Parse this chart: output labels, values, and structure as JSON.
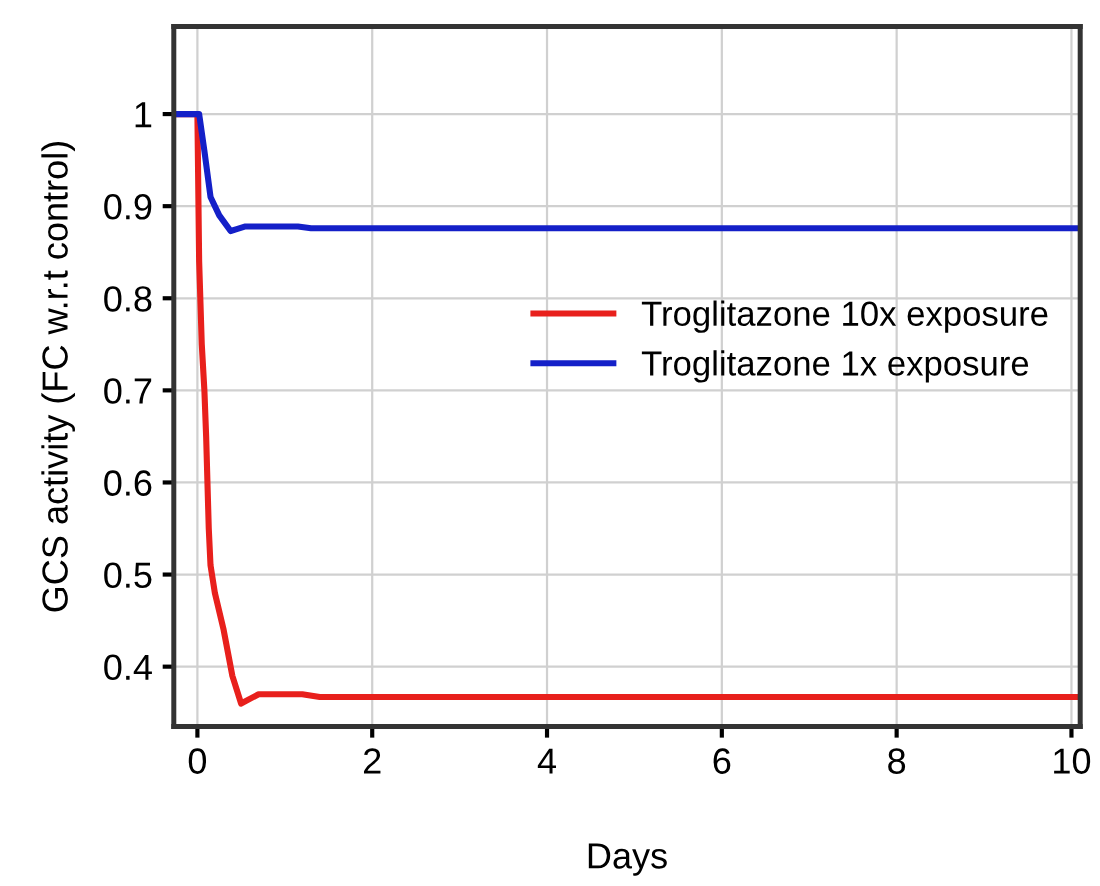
{
  "chart_data": {
    "type": "line",
    "xlabel": "Days",
    "ylabel": "GCS activity (FC w.r.t control)",
    "series": [
      {
        "name": "Troglitazone 10x exposure",
        "color": "#e8201c",
        "x": [
          -0.27,
          0,
          0.02,
          0.05,
          0.08,
          0.1,
          0.13,
          0.15,
          0.2,
          0.3,
          0.4,
          0.5,
          0.6,
          0.7,
          1.2,
          1.4,
          10.1
        ],
        "values": [
          1,
          1,
          0.84,
          0.75,
          0.7,
          0.65,
          0.55,
          0.51,
          0.48,
          0.44,
          0.39,
          0.36,
          0.365,
          0.37,
          0.37,
          0.367,
          0.367
        ]
      },
      {
        "name": "Troglitazone 1x exposure",
        "color": "#1420c8",
        "x": [
          -0.27,
          0.02,
          0.08,
          0.15,
          0.25,
          0.38,
          0.45,
          0.55,
          1.15,
          1.3,
          10.1
        ],
        "values": [
          1,
          1,
          0.96,
          0.91,
          0.89,
          0.873,
          0.875,
          0.878,
          0.878,
          0.876,
          0.876
        ]
      }
    ],
    "xlim": [
      -0.27,
      10.1
    ],
    "ylim": [
      0.335,
      1.095
    ],
    "xticks": [
      0,
      2,
      4,
      6,
      8,
      10
    ],
    "yticks": [
      0.4,
      0.5,
      0.6,
      0.7,
      0.8,
      0.9,
      1
    ],
    "grid": true,
    "legend": "right",
    "marker": "none",
    "line_style": "solid"
  }
}
